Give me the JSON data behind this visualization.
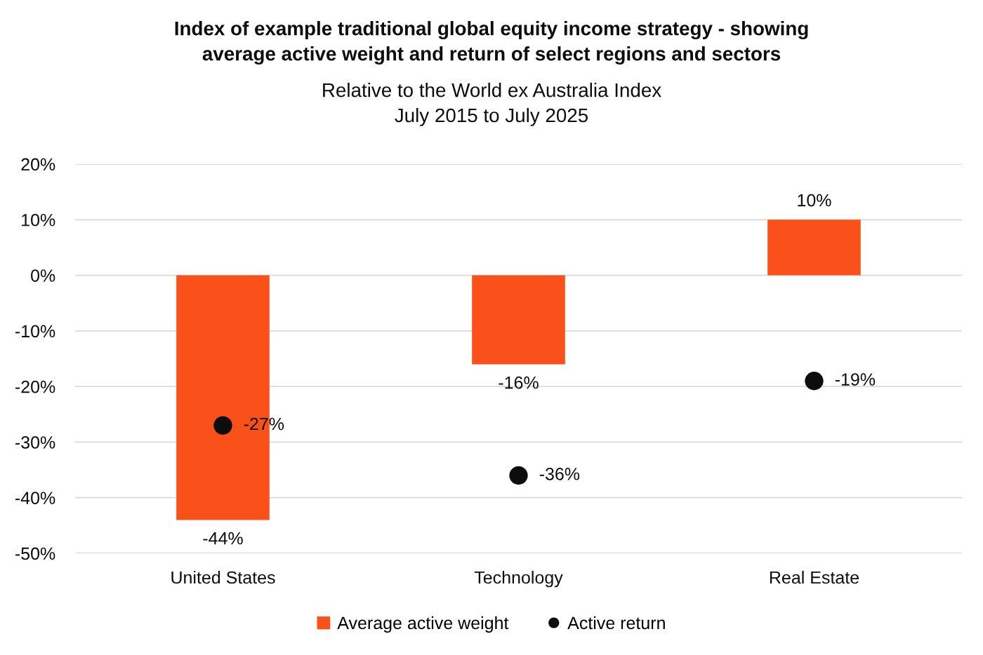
{
  "chart_data": {
    "type": "bar",
    "title": "Index of example traditional global equity income strategy - showing\naverage active weight and return of select regions and sectors",
    "subtitle": "Relative to the World ex Australia Index\nJuly 2015 to July 2025",
    "categories": [
      "United States",
      "Technology",
      "Real Estate"
    ],
    "series": [
      {
        "name": "Average active weight",
        "color": "#fa5019",
        "values": [
          -44,
          -16,
          10
        ],
        "value_labels": [
          "-44%",
          "-16%",
          "10%"
        ]
      },
      {
        "name": "Active return",
        "type": "scatter",
        "marker": "circle",
        "color": "#0d0d0d",
        "values": [
          -27,
          -36,
          -19
        ],
        "value_labels": [
          "-27%",
          "-36%",
          "-19%"
        ]
      }
    ],
    "ylim": [
      -50,
      20
    ],
    "yticks": [
      {
        "value": -50,
        "label": "-50%"
      },
      {
        "value": -40,
        "label": "-40%"
      },
      {
        "value": -30,
        "label": "-30%"
      },
      {
        "value": -20,
        "label": "-20%"
      },
      {
        "value": -10,
        "label": "-10%"
      },
      {
        "value": 0,
        "label": "0%"
      },
      {
        "value": 10,
        "label": "10%"
      },
      {
        "value": 20,
        "label": "20%"
      }
    ],
    "grid": "y",
    "legend": "bottom"
  }
}
